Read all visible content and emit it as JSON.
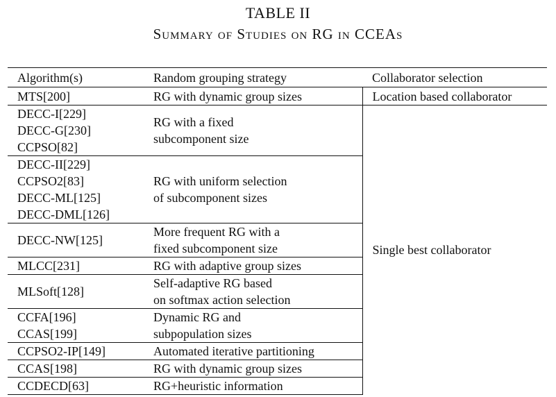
{
  "caption": {
    "number": "TABLE II",
    "title": "Summary of Studies on RG in CCEAs"
  },
  "table": {
    "headers": [
      "Algorithm(s)",
      "Random grouping strategy",
      "Collaborator selection"
    ],
    "rows": [
      {
        "algorithms": [
          "MTS[200]"
        ],
        "strategy": [
          "RG with dynamic group sizes"
        ],
        "collaborator": "Location based collaborator"
      },
      {
        "algorithms": [
          "DECC-I[229]",
          "DECC-G[230]",
          "CCPSO[82]"
        ],
        "strategy": [
          "RG with a fixed",
          "subcomponent size"
        ]
      },
      {
        "algorithms": [
          "DECC-II[229]",
          "CCPSO2[83]",
          "DECC-ML[125]",
          "DECC-DML[126]"
        ],
        "strategy": [
          "RG with uniform selection",
          "of subcomponent sizes"
        ]
      },
      {
        "algorithms": [
          "DECC-NW[125]"
        ],
        "strategy": [
          "More frequent RG with a",
          "fixed subcomponent size"
        ]
      },
      {
        "algorithms": [
          "MLCC[231]"
        ],
        "strategy": [
          "RG with adaptive group sizes"
        ]
      },
      {
        "algorithms": [
          "MLSoft[128]"
        ],
        "strategy": [
          "Self-adaptive RG based",
          "on softmax action selection"
        ]
      },
      {
        "algorithms": [
          "CCFA[196]",
          "CCAS[199]"
        ],
        "strategy": [
          "Dynamic RG and",
          "subpopulation sizes"
        ]
      },
      {
        "algorithms": [
          "CCPSO2-IP[149]"
        ],
        "strategy": [
          "Automated iterative partitioning"
        ]
      },
      {
        "algorithms": [
          "CCAS[198]"
        ],
        "strategy": [
          "RG with dynamic group sizes"
        ]
      },
      {
        "algorithms": [
          "CCDECD[63]"
        ],
        "strategy": [
          "RG+heuristic information"
        ]
      }
    ],
    "merged_collaborator": "Single best collaborator"
  }
}
